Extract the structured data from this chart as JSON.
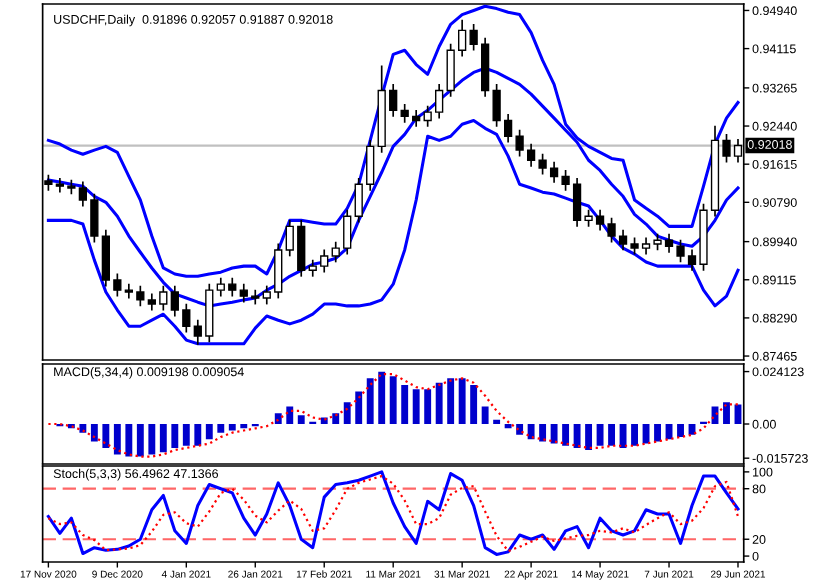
{
  "chart_data": [
    {
      "type": "candlestick",
      "title": "USDCHF,Daily  0.91896 0.92057 0.91887 0.92018",
      "categories": [
        null,
        null,
        null,
        null,
        null,
        null,
        null,
        null,
        null,
        null,
        null,
        null,
        null,
        null,
        null,
        null,
        null,
        null,
        null,
        null,
        null,
        null,
        null,
        null,
        null,
        null,
        null,
        null,
        null,
        null,
        null,
        null,
        null,
        null,
        null,
        null,
        null,
        null,
        null,
        null,
        null,
        null,
        null,
        null,
        null,
        null,
        null,
        null,
        null,
        null,
        null,
        null,
        null,
        null,
        null,
        null,
        null,
        null,
        null,
        null,
        null
      ],
      "ohlc": [
        [
          0.9125,
          0.9137,
          0.9106,
          0.9118
        ],
        [
          0.9118,
          0.913,
          0.9102,
          0.9114
        ],
        [
          0.9114,
          0.9126,
          0.9098,
          0.911
        ],
        [
          0.911,
          0.9122,
          0.9072,
          0.9084
        ],
        [
          0.9084,
          0.9096,
          0.8994,
          0.9006
        ],
        [
          0.9006,
          0.9018,
          0.8899,
          0.8911
        ],
        [
          0.8911,
          0.8923,
          0.8877,
          0.8889
        ],
        [
          0.8889,
          0.8901,
          0.8873,
          0.8885
        ],
        [
          0.8885,
          0.8897,
          0.8856,
          0.8868
        ],
        [
          0.8868,
          0.888,
          0.8847,
          0.8859
        ],
        [
          0.8859,
          0.8897,
          0.8847,
          0.8885
        ],
        [
          0.8885,
          0.8897,
          0.8834,
          0.8846
        ],
        [
          0.8846,
          0.8858,
          0.8799,
          0.8811
        ],
        [
          0.8811,
          0.8823,
          0.8773,
          0.879
        ],
        [
          0.879,
          0.8901,
          0.8778,
          0.8889
        ],
        [
          0.8889,
          0.8914,
          0.8877,
          0.8902
        ],
        [
          0.8902,
          0.8914,
          0.8877,
          0.8889
        ],
        [
          0.8889,
          0.8901,
          0.8864,
          0.8876
        ],
        [
          0.8876,
          0.8888,
          0.886,
          0.8872
        ],
        [
          0.8872,
          0.8897,
          0.886,
          0.8885
        ],
        [
          0.8885,
          0.8988,
          0.8873,
          0.8976
        ],
        [
          0.8976,
          0.9039,
          0.8964,
          0.9027
        ],
        [
          0.9027,
          0.9039,
          0.892,
          0.8932
        ],
        [
          0.8932,
          0.8953,
          0.892,
          0.8941
        ],
        [
          0.8941,
          0.8975,
          0.8929,
          0.8963
        ],
        [
          0.8963,
          0.8992,
          0.8951,
          0.898
        ],
        [
          0.898,
          0.9061,
          0.8968,
          0.9049
        ],
        [
          0.9049,
          0.913,
          0.9037,
          0.9118
        ],
        [
          0.9118,
          0.9212,
          0.9106,
          0.92
        ],
        [
          0.92,
          0.9373,
          0.9188,
          0.9321
        ],
        [
          0.9321,
          0.9333,
          0.9266,
          0.9278
        ],
        [
          0.9278,
          0.929,
          0.9253,
          0.9265
        ],
        [
          0.9265,
          0.9277,
          0.9244,
          0.9256
        ],
        [
          0.9256,
          0.9286,
          0.9244,
          0.9274
        ],
        [
          0.9274,
          0.9333,
          0.9262,
          0.9321
        ],
        [
          0.9321,
          0.942,
          0.9309,
          0.9408
        ],
        [
          0.9408,
          0.9472,
          0.9396,
          0.9451
        ],
        [
          0.9451,
          0.9463,
          0.9409,
          0.9421
        ],
        [
          0.9421,
          0.9433,
          0.9309,
          0.9321
        ],
        [
          0.9321,
          0.9333,
          0.9244,
          0.9256
        ],
        [
          0.9256,
          0.9268,
          0.921,
          0.9222
        ],
        [
          0.9222,
          0.9234,
          0.918,
          0.9192
        ],
        [
          0.9192,
          0.9204,
          0.9158,
          0.917
        ],
        [
          0.917,
          0.9182,
          0.9141,
          0.9153
        ],
        [
          0.9153,
          0.9165,
          0.9123,
          0.9135
        ],
        [
          0.9135,
          0.9147,
          0.9106,
          0.9118
        ],
        [
          0.9118,
          0.913,
          0.9028,
          0.904
        ],
        [
          0.904,
          0.9061,
          0.9028,
          0.9049
        ],
        [
          0.9049,
          0.9061,
          0.902,
          0.9032
        ],
        [
          0.9032,
          0.9044,
          0.8994,
          0.9006
        ],
        [
          0.9006,
          0.9018,
          0.8977,
          0.8989
        ],
        [
          0.8989,
          0.9001,
          0.8968,
          0.898
        ],
        [
          0.898,
          0.9001,
          0.8968,
          0.8989
        ],
        [
          0.8989,
          0.9009,
          0.8977,
          0.8997
        ],
        [
          0.8997,
          0.9009,
          0.8972,
          0.8984
        ],
        [
          0.8984,
          0.8996,
          0.8951,
          0.8963
        ],
        [
          0.8963,
          0.8975,
          0.8933,
          0.8945
        ],
        [
          0.8945,
          0.9074,
          0.8933,
          0.9062
        ],
        [
          0.9062,
          0.9243,
          0.905,
          0.9213
        ],
        [
          0.9213,
          0.9225,
          0.9167,
          0.9179
        ],
        [
          0.9179,
          0.9214,
          0.9167,
          0.9202
        ]
      ],
      "series": [
        {
          "type": "line",
          "color": "#0000ff",
          "values": [
            0.9213,
            0.9205,
            0.9192,
            0.9183,
            0.9192,
            0.92,
            0.9187,
            0.9135,
            0.9084,
            0.9006,
            0.8937,
            0.8924,
            0.8919,
            0.8919,
            0.8924,
            0.8928,
            0.8937,
            0.8941,
            0.8941,
            0.8924,
            0.8976,
            0.904,
            0.904,
            0.9036,
            0.9032,
            0.9032,
            0.9066,
            0.9118,
            0.9213,
            0.9308,
            0.9399,
            0.9408,
            0.9377,
            0.9356,
            0.9416,
            0.9464,
            0.9485,
            0.9494,
            0.9503,
            0.9498,
            0.949,
            0.9485,
            0.9446,
            0.9386,
            0.9334,
            0.9248,
            0.9218,
            0.92,
            0.9187,
            0.9174,
            0.917,
            0.9084,
            0.9066,
            0.9049,
            0.9027,
            0.9027,
            0.9027,
            0.9114,
            0.9205,
            0.9261,
            0.9295
          ]
        },
        {
          "type": "line",
          "color": "#0000ff",
          "values": [
            0.9127,
            0.9123,
            0.9118,
            0.9114,
            0.9092,
            0.9079,
            0.9049,
            0.9006,
            0.8971,
            0.8937,
            0.8906,
            0.8881,
            0.8872,
            0.8863,
            0.8855,
            0.8859,
            0.8863,
            0.8868,
            0.8872,
            0.8889,
            0.8902,
            0.8919,
            0.8932,
            0.8945,
            0.895,
            0.8958,
            0.898,
            0.904,
            0.9092,
            0.9144,
            0.92,
            0.9226,
            0.9261,
            0.9278,
            0.93,
            0.9321,
            0.9343,
            0.936,
            0.9369,
            0.936,
            0.9347,
            0.9334,
            0.9313,
            0.9287,
            0.9261,
            0.9235,
            0.9209,
            0.917,
            0.9148,
            0.9118,
            0.9092,
            0.9053,
            0.9032,
            0.9006,
            0.8997,
            0.8989,
            0.8984,
            0.9006,
            0.904,
            0.9084,
            0.911
          ]
        },
        {
          "type": "line",
          "color": "#0000ff",
          "values": [
            0.904,
            0.904,
            0.904,
            0.9032,
            0.8954,
            0.8885,
            0.8846,
            0.8811,
            0.8811,
            0.8824,
            0.8837,
            0.8811,
            0.8781,
            0.8773,
            0.8773,
            0.8773,
            0.8773,
            0.8773,
            0.8807,
            0.8833,
            0.8824,
            0.8816,
            0.8824,
            0.8837,
            0.8859,
            0.8859,
            0.8855,
            0.8855,
            0.8859,
            0.8868,
            0.8902,
            0.8976,
            0.9084,
            0.9222,
            0.9213,
            0.9222,
            0.9248,
            0.9256,
            0.9239,
            0.9226,
            0.9179,
            0.9118,
            0.911,
            0.9101,
            0.9097,
            0.9088,
            0.9079,
            0.9071,
            0.904,
            0.9006,
            0.898,
            0.8967,
            0.895,
            0.8941,
            0.8941,
            0.8941,
            0.8941,
            0.8889,
            0.8855,
            0.8876,
            0.8932
          ]
        }
      ],
      "ylim": [
        0.8738,
        0.9508
      ],
      "yticks": [
        {
          "value": 0.87465,
          "label": "0.87465"
        },
        {
          "value": 0.8829,
          "label": "0.88290"
        },
        {
          "value": 0.89115,
          "label": "0.89115"
        },
        {
          "value": 0.8994,
          "label": "0.89940"
        },
        {
          "value": 0.9079,
          "label": "0.90790"
        },
        {
          "value": 0.91615,
          "label": "0.91615"
        },
        {
          "value": 0.9244,
          "label": "0.92440"
        },
        {
          "value": 0.93265,
          "label": "0.93265"
        },
        {
          "value": 0.94115,
          "label": "0.94115"
        },
        {
          "value": 0.9494,
          "label": "0.94940"
        }
      ],
      "ref_lines": [
        {
          "axis": "y",
          "value": 0.92018,
          "label": "0.92018",
          "color": "#c0c0c0"
        }
      ],
      "tick_labels": "y"
    },
    {
      "type": "bar",
      "annotations": [
        "MACD(5,34,4) 0.009198 0.009054"
      ],
      "categories": [
        null,
        null,
        null,
        null,
        null,
        null,
        null,
        null,
        null,
        null,
        null,
        null,
        null,
        null,
        null,
        null,
        null,
        null,
        null,
        null,
        null,
        null,
        null,
        null,
        null,
        null,
        null,
        null,
        null,
        null,
        null,
        null,
        null,
        null,
        null,
        null,
        null,
        null,
        null,
        null,
        null,
        null,
        null,
        null,
        null,
        null,
        null,
        null,
        null,
        null,
        null,
        null,
        null,
        null,
        null,
        null,
        null,
        null,
        null,
        null,
        null
      ],
      "series": [
        {
          "color": "#0000cc",
          "values": [
            0.0,
            -0.001,
            -0.002,
            -0.004,
            -0.008,
            -0.011,
            -0.014,
            -0.015,
            -0.015,
            -0.014,
            -0.013,
            -0.011,
            -0.01,
            -0.01,
            -0.007,
            -0.004,
            -0.003,
            -0.002,
            -0.001,
            0.0,
            0.005,
            0.008,
            0.004,
            0.001,
            0.003,
            0.005,
            0.01,
            0.015,
            0.021,
            0.024,
            0.022,
            0.018,
            0.016,
            0.016,
            0.019,
            0.021,
            0.021,
            0.018,
            0.008,
            0.002,
            -0.002,
            -0.005,
            -0.007,
            -0.008,
            -0.009,
            -0.01,
            -0.011,
            -0.012,
            -0.01,
            -0.01,
            -0.011,
            -0.01,
            -0.009,
            -0.008,
            -0.007,
            -0.006,
            -0.005,
            0.001,
            0.008,
            0.01,
            0.009
          ]
        },
        {
          "type": "line",
          "color": "#ff0000",
          "line_style": "dotted",
          "values": [
            0.0,
            0.0,
            -0.001,
            -0.003,
            -0.006,
            -0.009,
            -0.012,
            -0.014,
            -0.015,
            -0.015,
            -0.014,
            -0.012,
            -0.011,
            -0.01,
            -0.009,
            -0.006,
            -0.004,
            -0.003,
            -0.002,
            -0.001,
            0.002,
            0.006,
            0.006,
            0.003,
            0.002,
            0.004,
            0.007,
            0.012,
            0.018,
            0.023,
            0.023,
            0.02,
            0.017,
            0.016,
            0.018,
            0.02,
            0.021,
            0.019,
            0.013,
            0.006,
            0.001,
            -0.003,
            -0.006,
            -0.007,
            -0.008,
            -0.009,
            -0.01,
            -0.011,
            -0.011,
            -0.01,
            -0.01,
            -0.01,
            -0.009,
            -0.008,
            -0.007,
            -0.006,
            -0.005,
            -0.002,
            0.004,
            0.009,
            0.009
          ]
        }
      ],
      "ylim": [
        -0.0184,
        0.0276
      ],
      "yticks": [
        {
          "value": -0.015723,
          "label": "-0.015723"
        },
        {
          "value": 0,
          "label": "0.00"
        },
        {
          "value": 0.024123,
          "label": "0.024123"
        }
      ],
      "tick_labels": "y"
    },
    {
      "type": "line",
      "annotations": [
        "Stoch(5,3,3) 56.4962 47.1366"
      ],
      "categories": [
        "17 Nov 2020",
        null,
        null,
        null,
        null,
        null,
        "9 Dec 2020",
        null,
        null,
        null,
        null,
        null,
        "4 Jan 2021",
        null,
        null,
        null,
        null,
        null,
        "26 Jan 2021",
        null,
        null,
        null,
        null,
        null,
        "17 Feb 2021",
        null,
        null,
        null,
        null,
        null,
        "11 Mar 2021",
        null,
        null,
        null,
        null,
        null,
        "31 Mar 2021",
        null,
        null,
        null,
        null,
        null,
        "22 Apr 2021",
        null,
        null,
        null,
        null,
        null,
        "14 May 2021",
        null,
        null,
        null,
        null,
        null,
        "7 Jun 2021",
        null,
        null,
        null,
        null,
        null,
        "29 Jun 2021"
      ],
      "series": [
        {
          "color": "#0000ff",
          "values": [
            47,
            27,
            45,
            3,
            10,
            7,
            8,
            12,
            20,
            55,
            72,
            30,
            15,
            60,
            85,
            80,
            75,
            45,
            25,
            50,
            87,
            60,
            20,
            10,
            70,
            85,
            87,
            90,
            95,
            100,
            63,
            35,
            15,
            65,
            55,
            98,
            90,
            60,
            10,
            2,
            5,
            25,
            20,
            25,
            8,
            30,
            35,
            10,
            45,
            30,
            25,
            30,
            55,
            50,
            50,
            15,
            60,
            95,
            95,
            75,
            56
          ]
        },
        {
          "color": "#ff0000",
          "line_style": "dotted",
          "values": [
            45,
            38,
            40,
            25,
            19,
            7,
            8,
            9,
            13,
            29,
            49,
            52,
            39,
            35,
            53,
            75,
            80,
            67,
            48,
            40,
            54,
            66,
            56,
            30,
            33,
            55,
            80,
            87,
            91,
            95,
            86,
            66,
            38,
            38,
            45,
            73,
            81,
            83,
            53,
            24,
            6,
            11,
            17,
            23,
            18,
            21,
            24,
            25,
            30,
            28,
            33,
            28,
            37,
            45,
            52,
            38,
            42,
            57,
            83,
            88,
            47
          ]
        }
      ],
      "ylim": [
        -7,
        107
      ],
      "yticks": [
        0,
        20,
        80,
        100
      ],
      "ref_lines": [
        {
          "axis": "y",
          "value": 20,
          "color": "#ff6666",
          "line_style": "dashed"
        },
        {
          "axis": "y",
          "value": 80,
          "color": "#ff6666",
          "line_style": "dashed"
        }
      ]
    }
  ]
}
